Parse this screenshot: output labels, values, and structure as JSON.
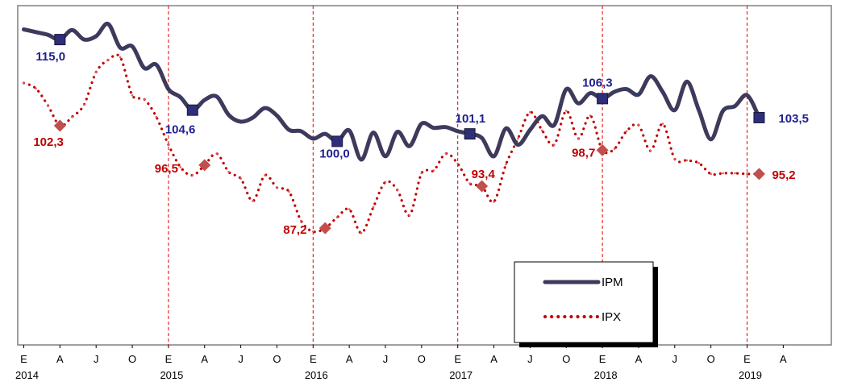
{
  "chart_data": {
    "type": "line",
    "title": "",
    "xlabel": "",
    "ylabel": "",
    "grid": false,
    "legend_placement": "bottom-right",
    "month_ticks": [
      "E",
      "A",
      "J",
      "O",
      "E",
      "A",
      "J",
      "O",
      "E",
      "A",
      "J",
      "O",
      "E",
      "A",
      "J",
      "O",
      "E",
      "A",
      "J",
      "O",
      "E",
      "A"
    ],
    "years": [
      "2014",
      "2015",
      "2016",
      "2017",
      "2018",
      "2019"
    ],
    "ylim": [
      70,
      120
    ],
    "colors": {
      "ipm": "#3f3a5a",
      "ipm_marker": "#2e2e7a",
      "ipx": "#c00000",
      "ipx_marker": "#c0504d",
      "ipm_label": "#1f1f8f",
      "ipx_label": "#c00000",
      "year_line": "#e00000",
      "frame": "#808080"
    },
    "series": [
      {
        "name": "IPM",
        "values": [
          116.5,
          116.1,
          115.7,
          115.0,
          116.4,
          115.0,
          115.5,
          117.3,
          113.8,
          114.0,
          110.8,
          111.3,
          107.7,
          106.5,
          104.6,
          106.1,
          106.6,
          103.9,
          102.9,
          103.5,
          104.9,
          103.8,
          101.7,
          101.5,
          100.4,
          101.1,
          100.0,
          101.6,
          97.3,
          101.3,
          97.8,
          101.4,
          99.3,
          102.6,
          102.0,
          102.1,
          101.5,
          101.1,
          100.5,
          97.8,
          101.9,
          99.5,
          101.7,
          103.7,
          102.4,
          107.7,
          105.6,
          107.1,
          106.3,
          107.3,
          107.7,
          106.9,
          109.6,
          107.3,
          104.6,
          108.8,
          104.6,
          100.3,
          104.5,
          105.2,
          106.8,
          103.5
        ],
        "markers": [
          {
            "i": 3,
            "label": "115,0"
          },
          {
            "i": 14,
            "label": "104,6"
          },
          {
            "i": 26,
            "label": "100,0"
          },
          {
            "i": 37,
            "label": "101,1"
          },
          {
            "i": 48,
            "label": "106,3"
          },
          {
            "i": 61,
            "label": "103,5"
          }
        ]
      },
      {
        "name": "IPX",
        "values": [
          108.6,
          107.8,
          105.3,
          102.3,
          103.6,
          105.4,
          110.2,
          112.0,
          112.4,
          106.8,
          106.2,
          103.6,
          99.5,
          96.2,
          95.0,
          96.5,
          98.2,
          95.5,
          94.5,
          91.2,
          95.0,
          93.2,
          92.6,
          88.3,
          86.7,
          87.2,
          88.8,
          90.0,
          86.5,
          90.3,
          94.0,
          92.8,
          89.1,
          95.3,
          95.7,
          98.2,
          96.7,
          93.8,
          93.4,
          91.1,
          96.6,
          100.4,
          104.3,
          101.6,
          99.5,
          104.5,
          100.4,
          103.8,
          98.7,
          98.9,
          101.5,
          102.4,
          98.6,
          102.6,
          97.4,
          97.2,
          96.8,
          95.2,
          95.3,
          95.3,
          95.2,
          95.2
        ],
        "markers": [
          {
            "i": 3,
            "label": "102,3"
          },
          {
            "i": 15,
            "label": "96,5"
          },
          {
            "i": 25,
            "label": "87,2"
          },
          {
            "i": 38,
            "label": "93,4"
          },
          {
            "i": 48,
            "label": "98,7"
          },
          {
            "i": 61,
            "label": "95,2"
          }
        ]
      }
    ]
  }
}
